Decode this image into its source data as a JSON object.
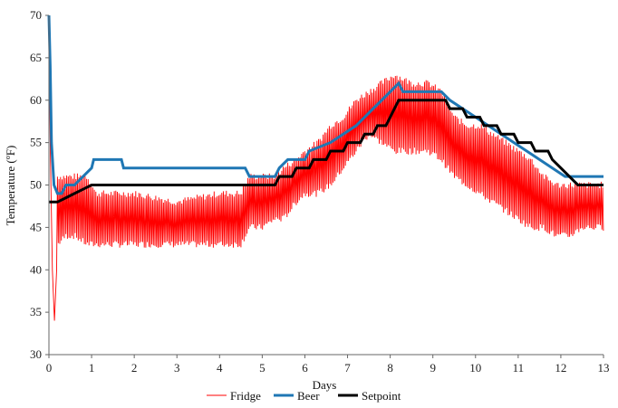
{
  "chart_data": {
    "type": "line",
    "title": "",
    "xlabel": "Days",
    "ylabel": "Temperature  (ºF)",
    "xlim": [
      0,
      13
    ],
    "ylim": [
      30,
      70
    ],
    "x_ticks": [
      0,
      1,
      2,
      3,
      4,
      5,
      6,
      7,
      8,
      9,
      10,
      11,
      12,
      13
    ],
    "y_ticks": [
      30,
      35,
      40,
      45,
      50,
      55,
      60,
      65,
      70
    ],
    "grid": false,
    "legend_position": "bottom",
    "series": [
      {
        "name": "Fridge",
        "color": "#ff0000",
        "style": "oscillating",
        "points": [
          [
            0,
            68
          ],
          [
            0.03,
            55
          ],
          [
            0.08,
            40
          ],
          [
            0.13,
            34
          ],
          [
            0.18,
            40
          ],
          [
            0.25,
            44
          ],
          [
            0.35,
            45
          ],
          [
            0.5,
            45
          ],
          [
            0.7,
            45
          ],
          [
            0.9,
            45
          ],
          [
            1.0,
            46
          ],
          [
            1.1,
            45
          ],
          [
            1.3,
            45
          ],
          [
            1.5,
            45
          ],
          [
            2,
            45
          ],
          [
            3,
            45
          ],
          [
            4,
            45
          ],
          [
            4.5,
            45
          ],
          [
            4.7,
            46
          ],
          [
            5.0,
            47
          ],
          [
            5.3,
            47
          ],
          [
            5.5,
            48
          ],
          [
            5.8,
            49
          ],
          [
            6.0,
            51
          ],
          [
            6.3,
            51
          ],
          [
            6.5,
            52
          ],
          [
            6.8,
            54
          ],
          [
            7.0,
            56
          ],
          [
            7.3,
            58
          ],
          [
            7.6,
            58
          ],
          [
            8.0,
            58
          ],
          [
            8.5,
            58
          ],
          [
            9.0,
            58
          ],
          [
            9.3,
            56
          ],
          [
            9.6,
            54
          ],
          [
            10.0,
            52
          ],
          [
            10.4,
            51
          ],
          [
            10.8,
            50
          ],
          [
            11.2,
            49
          ],
          [
            11.6,
            48
          ],
          [
            12.0,
            47
          ],
          [
            12.5,
            47
          ],
          [
            13,
            47
          ]
        ],
        "band": [
          [
            0.2,
            43,
            51
          ],
          [
            0.4,
            44,
            51
          ],
          [
            0.6,
            44,
            51
          ],
          [
            0.9,
            43,
            51
          ],
          [
            1.1,
            43,
            49
          ],
          [
            2,
            43,
            49
          ],
          [
            3,
            43,
            48
          ],
          [
            4,
            43,
            49
          ],
          [
            4.5,
            43,
            49
          ],
          [
            4.7,
            45,
            51
          ],
          [
            5.0,
            45,
            51
          ],
          [
            5.3,
            46,
            51
          ],
          [
            5.5,
            46,
            52
          ],
          [
            5.8,
            48,
            53
          ],
          [
            6.0,
            49,
            54
          ],
          [
            6.3,
            49,
            55
          ],
          [
            6.6,
            50,
            57
          ],
          [
            6.9,
            52,
            58
          ],
          [
            7.2,
            54,
            60
          ],
          [
            7.5,
            56,
            61
          ],
          [
            7.8,
            55,
            62
          ],
          [
            8.1,
            54,
            63
          ],
          [
            8.5,
            54,
            62
          ],
          [
            8.9,
            54,
            62
          ],
          [
            9.2,
            53,
            61
          ],
          [
            9.5,
            51,
            58
          ],
          [
            9.8,
            50,
            57
          ],
          [
            10.1,
            49,
            57
          ],
          [
            10.4,
            48,
            56
          ],
          [
            10.7,
            47,
            55
          ],
          [
            11.0,
            46,
            54
          ],
          [
            11.3,
            45,
            53
          ],
          [
            11.6,
            45,
            51
          ],
          [
            11.9,
            44,
            50
          ],
          [
            12.2,
            44,
            50
          ],
          [
            12.5,
            45,
            50
          ],
          [
            12.8,
            45,
            50
          ],
          [
            13,
            45,
            50
          ]
        ]
      },
      {
        "name": "Beer",
        "color": "#1f77b4",
        "points": [
          [
            0,
            70
          ],
          [
            0.03,
            64
          ],
          [
            0.06,
            55
          ],
          [
            0.12,
            50
          ],
          [
            0.2,
            49
          ],
          [
            0.3,
            49
          ],
          [
            0.4,
            50
          ],
          [
            0.6,
            50
          ],
          [
            0.8,
            51
          ],
          [
            1.0,
            52
          ],
          [
            1.05,
            53
          ],
          [
            1.7,
            53
          ],
          [
            1.75,
            52
          ],
          [
            3.2,
            52
          ],
          [
            3.3,
            52
          ],
          [
            4.6,
            52
          ],
          [
            4.7,
            51
          ],
          [
            5.3,
            51
          ],
          [
            5.4,
            52
          ],
          [
            5.6,
            53
          ],
          [
            6.0,
            53
          ],
          [
            6.1,
            54
          ],
          [
            6.6,
            55
          ],
          [
            6.9,
            56
          ],
          [
            7.2,
            57
          ],
          [
            7.4,
            58
          ],
          [
            7.6,
            59
          ],
          [
            7.8,
            60
          ],
          [
            8.0,
            61
          ],
          [
            8.2,
            62
          ],
          [
            8.3,
            61
          ],
          [
            9.2,
            61
          ],
          [
            9.4,
            60
          ],
          [
            9.7,
            59
          ],
          [
            10.0,
            58
          ],
          [
            10.3,
            57
          ],
          [
            10.6,
            56
          ],
          [
            10.9,
            55
          ],
          [
            11.2,
            54
          ],
          [
            11.5,
            53
          ],
          [
            11.8,
            52
          ],
          [
            12.1,
            51
          ],
          [
            13,
            51
          ]
        ]
      },
      {
        "name": "Setpoint",
        "color": "#000000",
        "points": [
          [
            0,
            48
          ],
          [
            0.2,
            48
          ],
          [
            0.4,
            48.5
          ],
          [
            0.6,
            49
          ],
          [
            0.8,
            49.5
          ],
          [
            1.0,
            50
          ],
          [
            5.3,
            50
          ],
          [
            5.4,
            51
          ],
          [
            5.7,
            51
          ],
          [
            5.8,
            52
          ],
          [
            6.1,
            52
          ],
          [
            6.2,
            53
          ],
          [
            6.5,
            53
          ],
          [
            6.6,
            54
          ],
          [
            6.9,
            54
          ],
          [
            7.0,
            55
          ],
          [
            7.3,
            55
          ],
          [
            7.4,
            56
          ],
          [
            7.6,
            56
          ],
          [
            7.7,
            57
          ],
          [
            7.9,
            57
          ],
          [
            8.0,
            58
          ],
          [
            8.1,
            59
          ],
          [
            8.2,
            60
          ],
          [
            9.3,
            60
          ],
          [
            9.4,
            59
          ],
          [
            9.7,
            59
          ],
          [
            9.8,
            58
          ],
          [
            10.1,
            58
          ],
          [
            10.2,
            57
          ],
          [
            10.5,
            57
          ],
          [
            10.6,
            56
          ],
          [
            10.9,
            56
          ],
          [
            11.0,
            55
          ],
          [
            11.3,
            55
          ],
          [
            11.4,
            54
          ],
          [
            11.7,
            54
          ],
          [
            11.8,
            53
          ],
          [
            12.0,
            52
          ],
          [
            12.2,
            51
          ],
          [
            12.4,
            50
          ],
          [
            13,
            50
          ]
        ]
      }
    ]
  }
}
